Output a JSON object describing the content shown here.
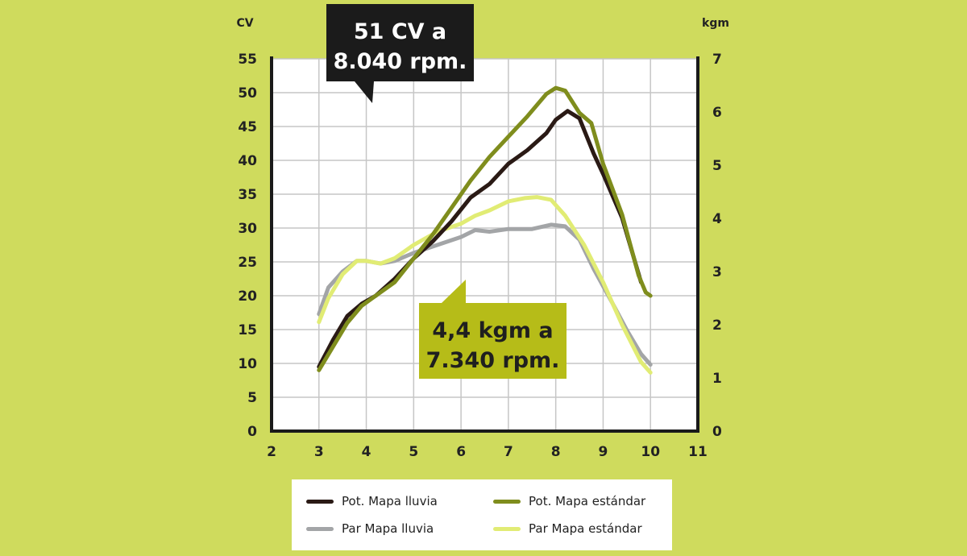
{
  "chart_data": {
    "type": "line",
    "left_axis_label": "CV",
    "right_axis_label": "kgm",
    "x_ticks": [
      "2",
      "3",
      "4",
      "5",
      "6",
      "7",
      "8",
      "9",
      "10",
      "11"
    ],
    "left_ticks": [
      "0",
      "5",
      "10",
      "15",
      "20",
      "25",
      "30",
      "35",
      "40",
      "45",
      "50",
      "55"
    ],
    "right_ticks": [
      "0",
      "1",
      "2",
      "3",
      "4",
      "5",
      "6",
      "7"
    ],
    "xlim": [
      2,
      11
    ],
    "ylim_left": [
      0,
      55
    ],
    "ylim_right": [
      0,
      7
    ],
    "grid": true,
    "series": [
      {
        "name": "Pot. Mapa lluvia",
        "axis": "left",
        "color": "#2a1a15",
        "x": [
          3.0,
          3.3,
          3.6,
          3.9,
          4.2,
          4.6,
          5.0,
          5.4,
          5.8,
          6.2,
          6.6,
          7.0,
          7.4,
          7.8,
          8.0,
          8.25,
          8.5,
          8.8,
          9.0,
          9.4,
          9.8
        ],
        "y": [
          9.5,
          13.5,
          17.0,
          18.8,
          20.0,
          22.5,
          25.5,
          28.0,
          31.0,
          34.5,
          36.5,
          39.5,
          41.5,
          44.0,
          46.0,
          47.3,
          46.2,
          41.0,
          38.0,
          31.5,
          22.0
        ]
      },
      {
        "name": "Pot. Mapa estándar",
        "axis": "left",
        "color": "#7f8d1d",
        "x": [
          3.0,
          3.3,
          3.6,
          3.9,
          4.2,
          4.6,
          5.0,
          5.4,
          5.8,
          6.2,
          6.6,
          7.0,
          7.4,
          7.8,
          8.0,
          8.2,
          8.5,
          8.75,
          9.0,
          9.4,
          9.75,
          9.9,
          10.0
        ],
        "y": [
          9.0,
          12.5,
          16.0,
          18.5,
          20.0,
          22.0,
          25.5,
          29.0,
          33.0,
          37.0,
          40.5,
          43.5,
          46.5,
          49.8,
          50.7,
          50.3,
          47.0,
          45.5,
          39.5,
          32.0,
          23.0,
          20.5,
          20.0
        ]
      },
      {
        "name": "Par Mapa lluvia",
        "axis": "right",
        "color": "#a3a5a7",
        "x": [
          3.0,
          3.2,
          3.5,
          3.8,
          4.0,
          4.3,
          4.6,
          5.0,
          5.5,
          6.0,
          6.3,
          6.6,
          7.0,
          7.5,
          7.9,
          8.2,
          8.5,
          8.8,
          9.2,
          9.5,
          9.8,
          10.0
        ],
        "y": [
          2.2,
          2.7,
          3.0,
          3.2,
          3.2,
          3.15,
          3.2,
          3.35,
          3.5,
          3.65,
          3.78,
          3.75,
          3.8,
          3.8,
          3.88,
          3.85,
          3.6,
          3.05,
          2.4,
          1.9,
          1.45,
          1.25
        ]
      },
      {
        "name": "Par Mapa estándar",
        "axis": "right",
        "color": "#e1ec74",
        "x": [
          3.0,
          3.2,
          3.5,
          3.8,
          4.0,
          4.3,
          4.6,
          5.0,
          5.5,
          6.0,
          6.3,
          6.6,
          7.0,
          7.34,
          7.6,
          7.9,
          8.2,
          8.6,
          9.0,
          9.4,
          9.8,
          10.0
        ],
        "y": [
          2.05,
          2.5,
          2.95,
          3.2,
          3.2,
          3.15,
          3.25,
          3.5,
          3.75,
          3.9,
          4.05,
          4.15,
          4.32,
          4.38,
          4.4,
          4.35,
          4.05,
          3.5,
          2.8,
          2.0,
          1.3,
          1.1
        ]
      }
    ],
    "annotations": [
      {
        "lines": [
          "51 CV a",
          "8.040 rpm."
        ],
        "bg": "#1b1b1b",
        "fg": "#ffffff"
      },
      {
        "lines": [
          "4,4 kgm a",
          "7.340 rpm."
        ],
        "bg": "#b6bc18",
        "fg": "#1f1f1f"
      }
    ]
  },
  "legend": [
    {
      "label": "Pot. Mapa lluvia",
      "color": "#2a1a15"
    },
    {
      "label": "Pot. Mapa estándar",
      "color": "#7f8d1d"
    },
    {
      "label": "Par Mapa lluvia",
      "color": "#a3a5a7"
    },
    {
      "label": "Par Mapa estándar",
      "color": "#e1ec74"
    }
  ]
}
